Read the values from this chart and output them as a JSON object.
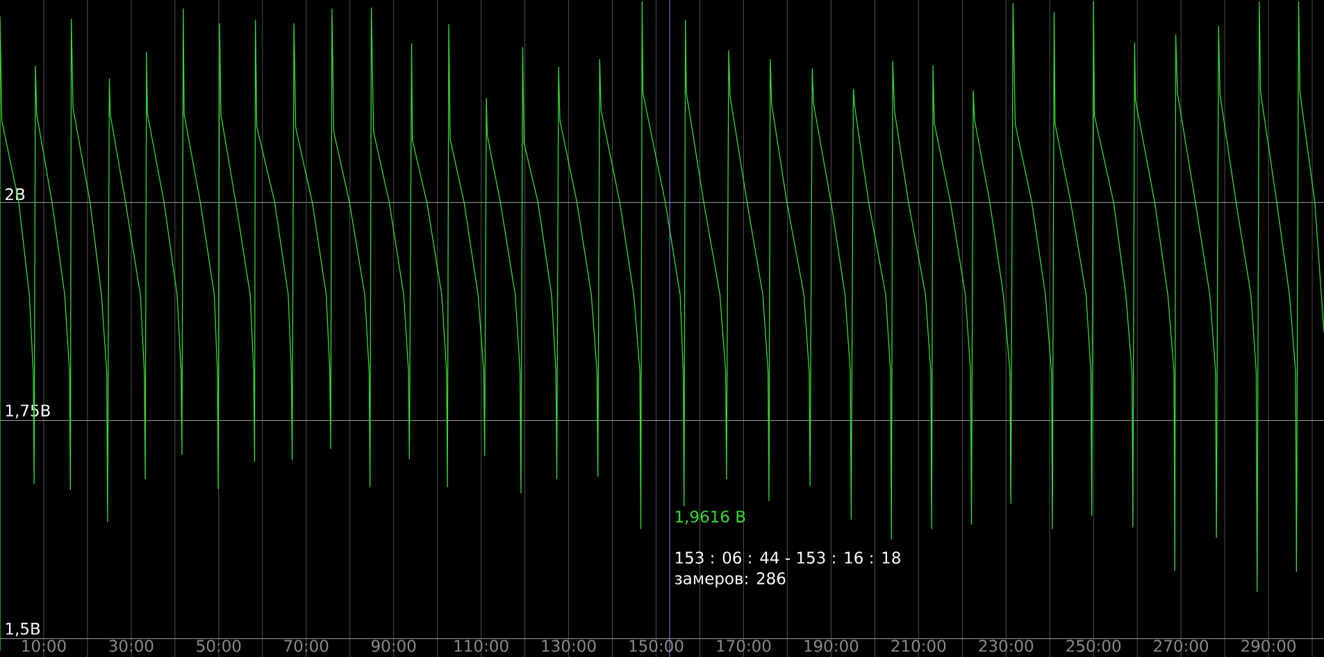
{
  "chart_data": {
    "type": "line",
    "x": [
      0,
      0,
      0.4,
      4.3,
      6.7,
      7.6,
      7.8,
      8.1,
      8.4,
      11.9,
      14.8,
      15.9,
      16.1,
      16.3,
      16.7,
      20.6,
      23.2,
      24.4,
      24.6,
      25.0,
      25.2,
      28.7,
      32.1,
      33.0,
      33.2,
      33.5,
      33.7,
      37.5,
      40.5,
      41.4,
      41.6,
      41.9,
      42.1,
      45.8,
      49.0,
      49.7,
      49.9,
      50.2,
      50.5,
      53.9,
      57.2,
      58.0,
      58.2,
      58.4,
      58.7,
      62.8,
      65.9,
      66.6,
      66.8,
      67.2,
      67.6,
      71.4,
      74.6,
      75.4,
      75.6,
      75.9,
      76.3,
      79.9,
      83.4,
      84.4,
      84.6,
      84.9,
      85.4,
      89.0,
      92.3,
      93.4,
      93.6,
      94.1,
      94.3,
      97.6,
      101.0,
      102.1,
      102.3,
      102.6,
      102.9,
      106.1,
      109.3,
      110.6,
      110.8,
      111.2,
      111.4,
      114.4,
      117.8,
      118.9,
      119.1,
      119.5,
      119.8,
      123.0,
      126.1,
      127.1,
      127.3,
      127.7,
      128.0,
      131.9,
      135.2,
      136.5,
      136.7,
      137.1,
      137.4,
      141.7,
      144.9,
      146.3,
      146.5,
      146.8,
      147.0,
      152.1,
      155.5,
      156.2,
      156.4,
      156.7,
      156.9,
      160.9,
      164.6,
      165.9,
      166.1,
      166.6,
      166.9,
      170.8,
      174.4,
      175.6,
      175.8,
      176.1,
      176.4,
      179.9,
      183.8,
      185.0,
      185.2,
      185.7,
      186.0,
      190.0,
      193.2,
      194.4,
      194.6,
      195.1,
      195.4,
      198.6,
      202.5,
      203.6,
      203.8,
      204.1,
      204.5,
      207.7,
      211.6,
      212.8,
      213.0,
      213.3,
      213.6,
      217.3,
      220.7,
      221.9,
      222.1,
      222.5,
      222.8,
      226.3,
      229.4,
      230.9,
      231.1,
      231.6,
      232.1,
      235.9,
      239.0,
      240.4,
      240.6,
      241.0,
      241.2,
      244.8,
      248.3,
      249.4,
      249.6,
      250.0,
      250.2,
      254.6,
      257.4,
      258.8,
      259.0,
      259.4,
      259.6,
      264.0,
      267.0,
      268.4,
      268.6,
      268.8,
      269.2,
      273.3,
      276.6,
      277.9,
      278.1,
      278.6,
      278.9,
      282.6,
      286.0,
      287.2,
      287.4,
      287.9,
      288.2,
      291.9,
      294.8,
      296.2,
      296.4,
      296.9,
      297.2,
      300.6,
      302.7
    ],
    "values": [
      1.486,
      2.213,
      2.094,
      2.0,
      1.894,
      1.806,
      1.678,
      2.156,
      2.101,
      2.0,
      1.894,
      1.806,
      1.671,
      2.21,
      2.108,
      2.0,
      1.894,
      1.806,
      1.634,
      2.142,
      2.101,
      2.0,
      1.894,
      1.806,
      1.683,
      2.172,
      2.102,
      2.0,
      1.894,
      1.806,
      1.711,
      2.222,
      2.101,
      2.0,
      1.894,
      1.806,
      1.672,
      2.205,
      2.101,
      2.0,
      1.894,
      1.806,
      1.703,
      2.209,
      2.087,
      2.0,
      1.894,
      1.806,
      1.705,
      2.205,
      2.086,
      2.0,
      1.894,
      1.806,
      1.718,
      2.222,
      2.081,
      2.0,
      1.894,
      1.806,
      1.674,
      2.223,
      2.081,
      2.0,
      1.894,
      1.806,
      1.706,
      2.182,
      2.071,
      2.0,
      1.894,
      1.806,
      1.674,
      2.204,
      2.073,
      2.0,
      1.894,
      1.806,
      1.71,
      2.119,
      2.077,
      2.0,
      1.894,
      1.806,
      1.667,
      2.178,
      2.068,
      2.0,
      1.894,
      1.806,
      1.683,
      2.155,
      2.094,
      2.0,
      1.894,
      1.806,
      1.686,
      2.164,
      2.106,
      2.0,
      1.894,
      1.806,
      1.626,
      2.23,
      2.125,
      2.0,
      1.894,
      1.806,
      1.652,
      2.209,
      2.126,
      2.0,
      1.894,
      1.806,
      1.683,
      2.174,
      2.122,
      2.0,
      1.894,
      1.806,
      1.658,
      2.164,
      2.113,
      2.0,
      1.894,
      1.806,
      1.675,
      2.153,
      2.113,
      2.0,
      1.894,
      1.806,
      1.637,
      2.13,
      2.11,
      2.0,
      1.894,
      1.806,
      1.614,
      2.162,
      2.105,
      2.0,
      1.894,
      1.806,
      1.626,
      2.157,
      2.091,
      2.0,
      1.894,
      1.806,
      1.631,
      2.128,
      2.095,
      2.0,
      1.894,
      1.806,
      1.655,
      2.228,
      2.09,
      2.0,
      1.894,
      1.806,
      1.626,
      2.218,
      2.09,
      2.0,
      1.894,
      1.806,
      1.641,
      2.23,
      2.1,
      2.0,
      1.894,
      1.806,
      1.628,
      2.183,
      2.117,
      2.0,
      1.894,
      1.806,
      1.578,
      2.192,
      2.125,
      2.0,
      1.894,
      1.806,
      1.616,
      2.202,
      2.124,
      2.0,
      1.894,
      1.806,
      1.554,
      2.23,
      2.126,
      2.0,
      1.894,
      1.806,
      1.577,
      2.23,
      2.126,
      2.0,
      1.851
    ],
    "color": "#33dd33",
    "xlim": [
      0,
      302.7
    ],
    "ylim": [
      1.479,
      2.232
    ],
    "xticks": [
      {
        "value": 10,
        "label": "10:00"
      },
      {
        "value": 20,
        "label": null
      },
      {
        "value": 30,
        "label": "30:00"
      },
      {
        "value": 40,
        "label": null
      },
      {
        "value": 50,
        "label": "50:00"
      },
      {
        "value": 60,
        "label": null
      },
      {
        "value": 70,
        "label": "70:00"
      },
      {
        "value": 80,
        "label": null
      },
      {
        "value": 90,
        "label": "90:00"
      },
      {
        "value": 100,
        "label": null
      },
      {
        "value": 110,
        "label": "110:00"
      },
      {
        "value": 120,
        "label": null
      },
      {
        "value": 130,
        "label": "130:00"
      },
      {
        "value": 140,
        "label": null
      },
      {
        "value": 150,
        "label": "150:00"
      },
      {
        "value": 160,
        "label": null
      },
      {
        "value": 170,
        "label": "170:00"
      },
      {
        "value": 180,
        "label": null
      },
      {
        "value": 190,
        "label": "190:00"
      },
      {
        "value": 200,
        "label": null
      },
      {
        "value": 210,
        "label": "210:00"
      },
      {
        "value": 220,
        "label": null
      },
      {
        "value": 230,
        "label": "230:00"
      },
      {
        "value": 240,
        "label": null
      },
      {
        "value": 250,
        "label": "250:00"
      },
      {
        "value": 260,
        "label": null
      },
      {
        "value": 270,
        "label": "270:00"
      },
      {
        "value": 280,
        "label": null
      },
      {
        "value": 290,
        "label": "290:00"
      },
      {
        "value": 300,
        "label": null
      }
    ],
    "yticks": [
      {
        "value": 1.5,
        "label": "1,5В"
      },
      {
        "value": 1.75,
        "label": "1,75В"
      },
      {
        "value": 2,
        "label": "2В"
      }
    ],
    "grid": true,
    "ref_lines": [
      {
        "axis": "x",
        "value": 153.11,
        "color": "#8c8cf0"
      }
    ],
    "annotations": [
      "1,9616 В",
      "153 : 06 : 44 - 153 : 16 : 18",
      "замеров: 286"
    ]
  }
}
